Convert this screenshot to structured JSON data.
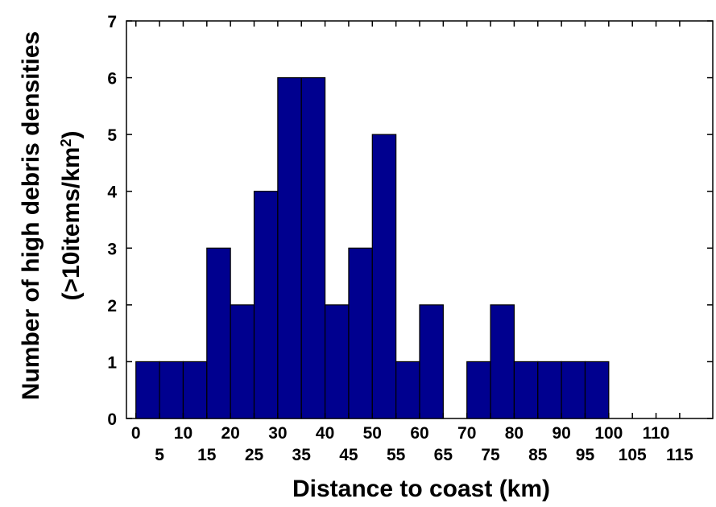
{
  "chart_data": {
    "type": "bar",
    "xlabel": "Distance to coast (km)",
    "ylabel_line1": "Number of high debris densities",
    "ylabel_line2_prefix": "(>10items/km",
    "ylabel_line2_sup": "2",
    "ylabel_line2_suffix": ")",
    "bin_width": 5,
    "bin_starts": [
      0,
      5,
      10,
      15,
      20,
      25,
      30,
      35,
      40,
      45,
      50,
      55,
      60,
      65,
      70,
      75,
      80,
      85,
      90,
      95
    ],
    "values": [
      1,
      1,
      1,
      3,
      2,
      4,
      6,
      6,
      2,
      3,
      5,
      1,
      2,
      0,
      1,
      2,
      1,
      1,
      1,
      1
    ],
    "xlim": [
      -2,
      122
    ],
    "ylim": [
      0,
      7
    ],
    "yticks": [
      0,
      1,
      2,
      3,
      4,
      5,
      6,
      7
    ],
    "xticks_upper": [
      0,
      10,
      20,
      30,
      40,
      50,
      60,
      70,
      80,
      90,
      100,
      110
    ],
    "xticks_lower": [
      5,
      15,
      25,
      35,
      45,
      55,
      65,
      75,
      85,
      95,
      105,
      115
    ],
    "bar_color": "#00008f",
    "grid": false,
    "legend": "none"
  }
}
